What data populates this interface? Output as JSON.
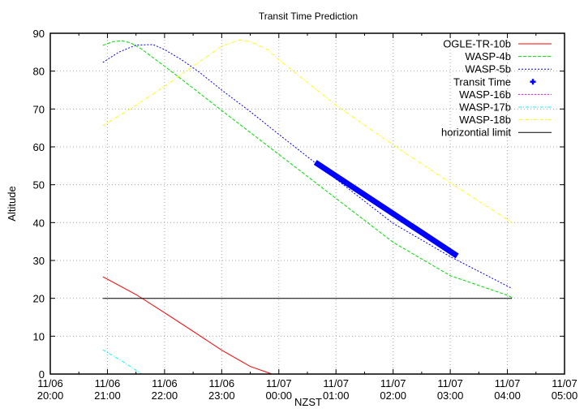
{
  "chart_data": {
    "type": "line",
    "title": "Transit Time Prediction",
    "xlabel": "NZST",
    "ylabel": "Altitude",
    "ylim": [
      0,
      90
    ],
    "yticks": [
      0,
      10,
      20,
      30,
      40,
      50,
      60,
      70,
      80,
      90
    ],
    "xlim_hours": [
      20,
      29
    ],
    "xticks": [
      {
        "h": 20,
        "date": "11/06",
        "time": "20:00"
      },
      {
        "h": 21,
        "date": "11/06",
        "time": "21:00"
      },
      {
        "h": 22,
        "date": "11/06",
        "time": "22:00"
      },
      {
        "h": 23,
        "date": "11/06",
        "time": "23:00"
      },
      {
        "h": 24,
        "date": "11/07",
        "time": "00:00"
      },
      {
        "h": 25,
        "date": "11/07",
        "time": "01:00"
      },
      {
        "h": 26,
        "date": "11/07",
        "time": "02:00"
      },
      {
        "h": 27,
        "date": "11/07",
        "time": "03:00"
      },
      {
        "h": 28,
        "date": "11/07",
        "time": "04:00"
      },
      {
        "h": 29,
        "date": "11/07",
        "time": "05:00"
      }
    ],
    "grid": true,
    "legend_position": "top-right",
    "series": [
      {
        "name": "OGLE-TR-10b",
        "color": "#ff0000",
        "style": "solid",
        "x": [
          20.92,
          21.5,
          22.0,
          22.5,
          23.0,
          23.5,
          23.88
        ],
        "y": [
          25.7,
          21.0,
          16.2,
          11.3,
          6.3,
          2.0,
          0
        ]
      },
      {
        "name": "WASP-4b",
        "color": "#00dd00",
        "style": "dashed",
        "x": [
          20.92,
          21.1,
          21.25,
          21.4,
          21.6,
          22.0,
          22.5,
          23.0,
          23.5,
          24.0,
          25.0,
          26.0,
          27.0,
          28.0,
          28.08
        ],
        "y": [
          86.8,
          87.8,
          88.0,
          87.5,
          85.8,
          81.3,
          75.5,
          69.6,
          63.8,
          58.0,
          46.4,
          34.8,
          26.0,
          20.8,
          20.2
        ]
      },
      {
        "name": "WASP-5b",
        "color": "#0000ff",
        "style": "dotted",
        "x": [
          20.92,
          21.2,
          21.5,
          21.8,
          22.0,
          22.3,
          22.6,
          23.0,
          23.5,
          24.0,
          25.0,
          26.0,
          27.0,
          28.08
        ],
        "y": [
          82.3,
          85.0,
          86.9,
          87.0,
          85.7,
          83.0,
          79.8,
          75.0,
          69.3,
          63.3,
          51.5,
          39.8,
          31.0,
          22.6
        ]
      },
      {
        "name": "Transit Time",
        "color": "#0000ff",
        "style": "points",
        "x": [
          24.68,
          27.08
        ],
        "y": [
          55.5,
          31.6
        ]
      },
      {
        "name": "WASP-16b",
        "color": "#ff00ff",
        "style": "dotted",
        "x": [],
        "y": []
      },
      {
        "name": "WASP-17b",
        "color": "#00ffff",
        "style": "dashdot",
        "x": [
          20.92,
          21.3,
          21.6
        ],
        "y": [
          6.4,
          3.0,
          0
        ]
      },
      {
        "name": "WASP-18b",
        "color": "#ffff00",
        "style": "dashdot",
        "x": [
          20.92,
          21.5,
          22.0,
          22.5,
          23.0,
          23.3,
          23.5,
          23.8,
          24.0,
          25.0,
          26.0,
          27.0,
          28.08
        ],
        "y": [
          65.6,
          71.0,
          76.0,
          81.3,
          86.6,
          88.2,
          87.8,
          85.7,
          83.0,
          71.0,
          60.5,
          50.5,
          40.0
        ]
      },
      {
        "name": "horizontial limit",
        "color": "#000000",
        "style": "solid",
        "x": [
          20.92,
          28.08
        ],
        "y": [
          20,
          20
        ]
      }
    ]
  }
}
